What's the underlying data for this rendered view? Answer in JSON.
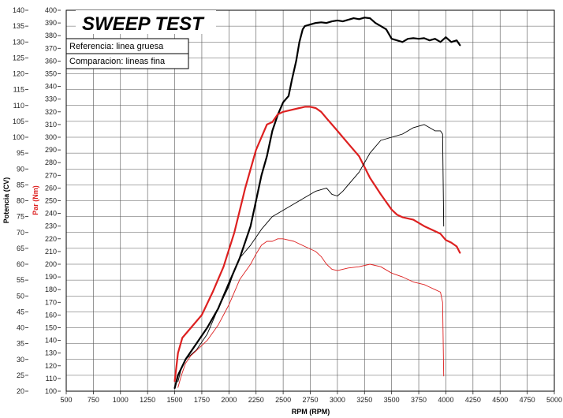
{
  "chart_data": {
    "type": "line",
    "title": "SWEEP TEST",
    "xlabel": "RPM (RPM)",
    "ylabel_left": "Potencia (CV)",
    "ylabel_right": "Par (Nm)",
    "legend": [
      "Referencia: linea gruesa",
      "Comparacion: lineas fina"
    ],
    "grid": true,
    "xlim": [
      500,
      5000
    ],
    "ylim_left": [
      20,
      140
    ],
    "ylim_right": [
      100,
      400
    ],
    "x_ticks": [
      500,
      750,
      1000,
      1250,
      1500,
      1750,
      2000,
      2250,
      2500,
      2750,
      3000,
      3250,
      3500,
      3750,
      4000,
      4250,
      4500,
      4750,
      5000
    ],
    "y_ticks_left": [
      20,
      25,
      30,
      35,
      40,
      45,
      50,
      55,
      60,
      65,
      70,
      75,
      80,
      85,
      90,
      95,
      100,
      105,
      110,
      115,
      120,
      125,
      130,
      135,
      140
    ],
    "y_ticks_right": [
      100,
      110,
      120,
      130,
      140,
      150,
      160,
      170,
      180,
      190,
      200,
      210,
      220,
      230,
      240,
      250,
      260,
      270,
      280,
      290,
      300,
      310,
      320,
      330,
      340,
      350,
      360,
      370,
      380,
      390,
      400
    ],
    "colors": {
      "power": "#000000",
      "torque": "#dd2020"
    },
    "series": [
      {
        "name": "Potencia referencia",
        "axis": "left",
        "color": "#000000",
        "weight": "thick",
        "x": [
          1500,
          1530,
          1600,
          1700,
          1800,
          1900,
          2000,
          2100,
          2200,
          2250,
          2300,
          2350,
          2400,
          2450,
          2500,
          2550,
          2580,
          2620,
          2650,
          2680,
          2700,
          2750,
          2800,
          2850,
          2900,
          2950,
          3000,
          3050,
          3100,
          3150,
          3200,
          3250,
          3300,
          3350,
          3400,
          3450,
          3500,
          3550,
          3600,
          3650,
          3700,
          3750,
          3800,
          3850,
          3900,
          3950,
          4000,
          4050,
          4100,
          4130
        ],
        "y": [
          21,
          25,
          30,
          35,
          40,
          46,
          54,
          62,
          72,
          80,
          88,
          94,
          102,
          107,
          111,
          113,
          118,
          124,
          130,
          134,
          135,
          135.5,
          136,
          136.2,
          136,
          136.5,
          136.8,
          136.5,
          137,
          137.5,
          137.2,
          137.7,
          137.5,
          136,
          135,
          134,
          131,
          130.5,
          130,
          131,
          131.2,
          131,
          131.2,
          130.5,
          131,
          130,
          131.5,
          130,
          130.5,
          129
        ]
      },
      {
        "name": "Par referencia",
        "axis": "right",
        "color": "#dd2020",
        "weight": "thick",
        "x": [
          1500,
          1530,
          1570,
          1650,
          1750,
          1850,
          1950,
          2050,
          2150,
          2250,
          2350,
          2400,
          2450,
          2500,
          2550,
          2600,
          2650,
          2700,
          2750,
          2800,
          2850,
          2900,
          2950,
          3000,
          3100,
          3200,
          3300,
          3400,
          3500,
          3550,
          3600,
          3700,
          3800,
          3900,
          3950,
          4000,
          4050,
          4100,
          4130
        ],
        "y": [
          108,
          130,
          142,
          150,
          160,
          178,
          198,
          225,
          260,
          290,
          310,
          312,
          318,
          320,
          321,
          322,
          323,
          324,
          324,
          323,
          320,
          315,
          310,
          305,
          295,
          285,
          268,
          255,
          243,
          239,
          237,
          235,
          230,
          226,
          224,
          219,
          217,
          214,
          209
        ]
      },
      {
        "name": "Potencia comparacion",
        "axis": "left",
        "color": "#000000",
        "weight": "thin",
        "x": [
          1530,
          1560,
          1600,
          1700,
          1800,
          1900,
          2000,
          2050,
          2100,
          2200,
          2300,
          2400,
          2500,
          2600,
          2700,
          2800,
          2850,
          2900,
          2950,
          3000,
          3050,
          3100,
          3200,
          3300,
          3400,
          3500,
          3600,
          3700,
          3750,
          3800,
          3850,
          3900,
          3950,
          3970,
          3980
        ],
        "y": [
          23,
          27,
          30,
          33,
          38,
          46,
          53,
          58,
          62,
          66,
          71,
          75,
          77,
          79,
          81,
          83,
          83.5,
          84,
          82,
          81.5,
          83,
          85,
          89,
          95,
          99,
          100,
          101,
          103,
          103.5,
          104,
          103,
          102,
          102,
          101,
          72
        ]
      },
      {
        "name": "Par comparacion",
        "axis": "right",
        "color": "#dd2020",
        "weight": "thin",
        "x": [
          1530,
          1560,
          1600,
          1650,
          1700,
          1800,
          1900,
          2000,
          2050,
          2100,
          2200,
          2250,
          2300,
          2350,
          2400,
          2450,
          2500,
          2600,
          2700,
          2800,
          2850,
          2900,
          2950,
          3000,
          3050,
          3100,
          3200,
          3300,
          3400,
          3500,
          3600,
          3700,
          3800,
          3850,
          3900,
          3950,
          3970,
          3980
        ],
        "y": [
          103,
          112,
          122,
          128,
          132,
          140,
          152,
          168,
          178,
          188,
          200,
          208,
          215,
          218,
          218,
          220,
          220,
          218,
          214,
          210,
          206,
          200,
          196,
          195,
          196,
          197,
          198,
          200,
          198,
          193,
          190,
          186,
          184,
          182,
          180,
          178,
          170,
          112
        ]
      }
    ]
  }
}
